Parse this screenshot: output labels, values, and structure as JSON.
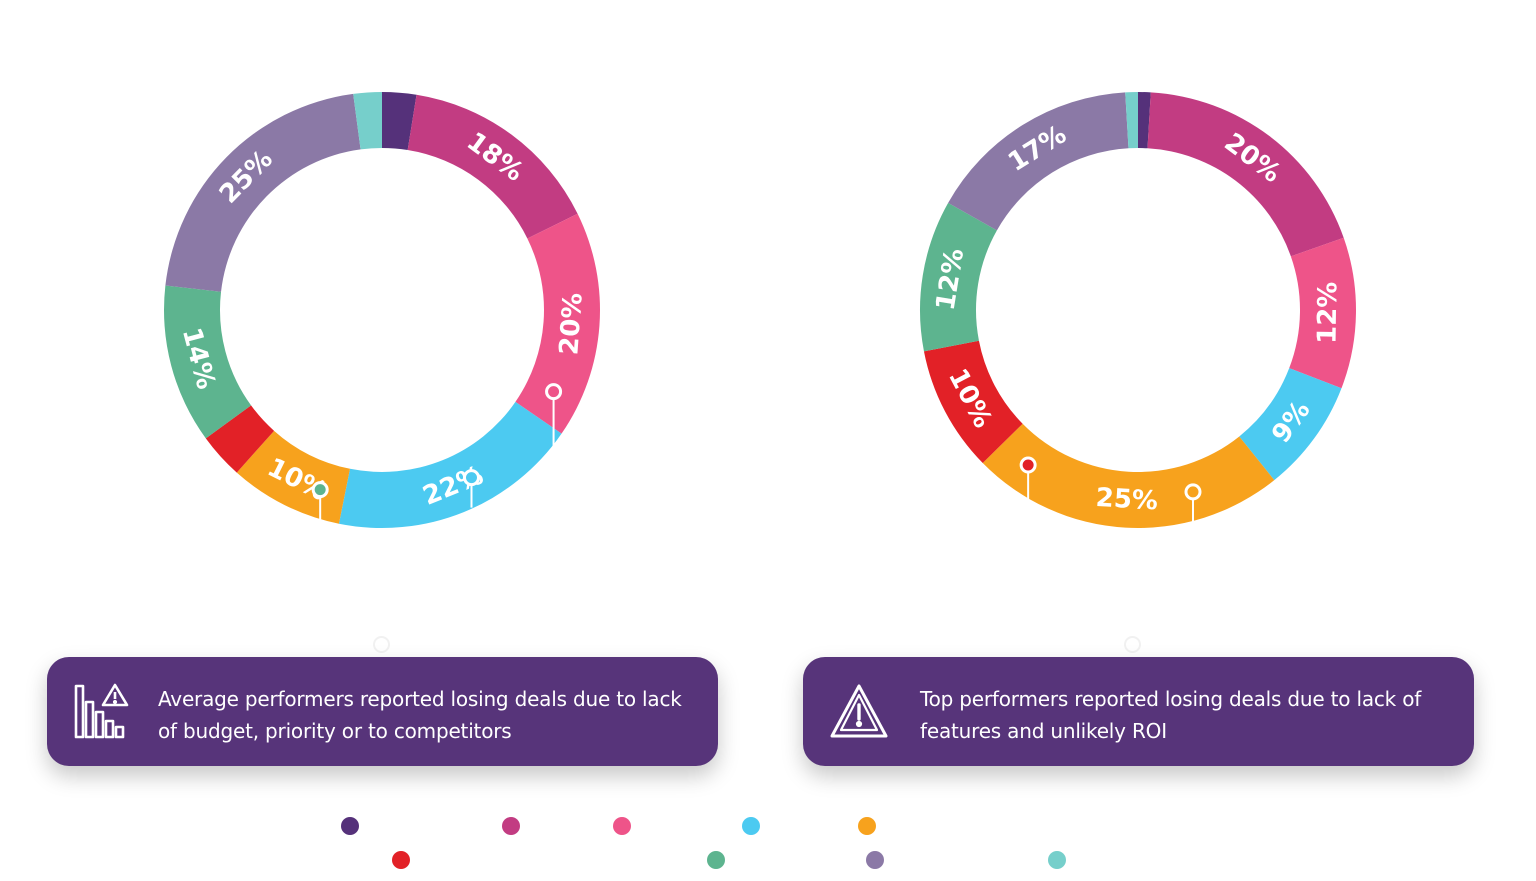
{
  "colors": {
    "dark_purple": "#55317a",
    "magenta": "#c23c82",
    "pink": "#ee5489",
    "sky_blue": "#4ccaf1",
    "orange": "#f7a21d",
    "red": "#e22127",
    "green": "#5db48f",
    "lavender": "#8b79a6",
    "teal": "#76cfcb",
    "callout_bg": "#57347a"
  },
  "chart_data": [
    {
      "type": "pie",
      "name": "Average performers",
      "slices": [
        {
          "color": "dark_purple",
          "value": 3,
          "label": ""
        },
        {
          "color": "magenta",
          "value": 18,
          "label": "18%"
        },
        {
          "color": "pink",
          "value": 20,
          "label": "20%"
        },
        {
          "color": "sky_blue",
          "value": 22,
          "label": "22%"
        },
        {
          "color": "orange",
          "value": 10,
          "label": "10%"
        },
        {
          "color": "red",
          "value": 4,
          "label": ""
        },
        {
          "color": "green",
          "value": 14,
          "label": "14%"
        },
        {
          "color": "lavender",
          "value": 25,
          "label": "25%"
        },
        {
          "color": "teal",
          "value": 2.5,
          "label": ""
        }
      ],
      "markers": [
        {
          "slice": 2,
          "value": 38,
          "line": 55
        },
        {
          "slice": 3,
          "value": 50,
          "line": 30
        },
        {
          "slice": 6,
          "value": 65.5,
          "line": 50
        }
      ]
    },
    {
      "type": "pie",
      "name": "Top performers",
      "slices": [
        {
          "color": "dark_purple",
          "value": 1,
          "label": ""
        },
        {
          "color": "magenta",
          "value": 20,
          "label": "20%"
        },
        {
          "color": "pink",
          "value": 12,
          "label": "12%"
        },
        {
          "color": "sky_blue",
          "value": 9,
          "label": "9%"
        },
        {
          "color": "orange",
          "value": 25,
          "label": "25%"
        },
        {
          "color": "red",
          "value": 10,
          "label": "10%"
        },
        {
          "color": "green",
          "value": 12,
          "label": "12%"
        },
        {
          "color": "lavender",
          "value": 17,
          "label": "17%"
        },
        {
          "color": "teal",
          "value": 1,
          "label": ""
        }
      ],
      "markers": [
        {
          "slice": 4,
          "value": 48.5,
          "line": 30
        },
        {
          "slice": 5,
          "value": 64,
          "line": 40
        }
      ]
    }
  ],
  "callouts": {
    "left": {
      "icon": "bar-chart-warning-icon",
      "line1": "Average performers reported losing deals due to lack",
      "line2": "of budget, priority or to competitors"
    },
    "right": {
      "icon": "warning-triangle-icon",
      "line1": "Top performers reported losing deals due to lack of",
      "line2": "features and unlikely ROI"
    }
  },
  "legend": {
    "row1": [
      "dark_purple",
      "magenta",
      "pink",
      "sky_blue",
      "orange"
    ],
    "row2": [
      "red",
      "green",
      "lavender",
      "teal"
    ]
  }
}
